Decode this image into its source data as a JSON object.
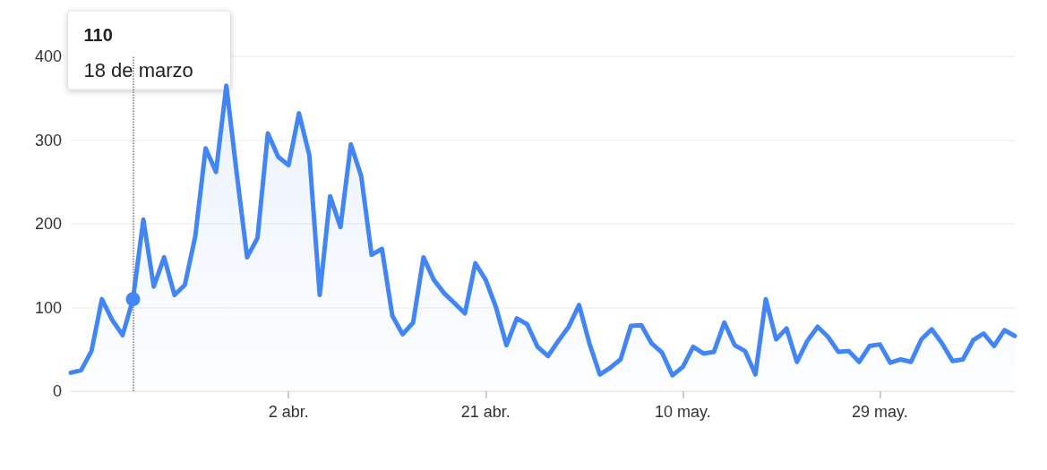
{
  "chart_data": {
    "type": "area",
    "x": [
      "--03-12",
      "--03-13",
      "--03-14",
      "--03-15",
      "--03-16",
      "--03-17",
      "--03-18",
      "--03-19",
      "--03-20",
      "--03-21",
      "--03-22",
      "--03-23",
      "--03-24",
      "--03-25",
      "--03-26",
      "--03-27",
      "--03-28",
      "--03-29",
      "--03-30",
      "--03-31",
      "--04-01",
      "--04-02",
      "--04-03",
      "--04-04",
      "--04-05",
      "--04-06",
      "--04-07",
      "--04-08",
      "--04-09",
      "--04-10",
      "--04-11",
      "--04-12",
      "--04-13",
      "--04-14",
      "--04-15",
      "--04-16",
      "--04-17",
      "--04-18",
      "--04-19",
      "--04-20",
      "--04-21",
      "--04-22",
      "--04-23",
      "--04-24",
      "--04-25",
      "--04-26",
      "--04-27",
      "--04-28",
      "--04-29",
      "--04-30",
      "--05-01",
      "--05-02",
      "--05-03",
      "--05-04",
      "--05-05",
      "--05-06",
      "--05-07",
      "--05-08",
      "--05-09",
      "--05-10",
      "--05-11",
      "--05-12",
      "--05-13",
      "--05-14",
      "--05-15",
      "--05-16",
      "--05-17",
      "--05-18",
      "--05-19",
      "--05-20",
      "--05-21",
      "--05-22",
      "--05-23",
      "--05-24",
      "--05-25",
      "--05-26",
      "--05-27",
      "--05-28",
      "--05-29",
      "--05-30",
      "--05-31",
      "--06-01",
      "--06-02",
      "--06-03",
      "--06-04",
      "--06-05",
      "--06-06",
      "--06-07",
      "--06-08",
      "--06-09",
      "--06-10",
      "--06-11"
    ],
    "series": [
      {
        "color": "#4285f4",
        "values": [
          22,
          25,
          48,
          110,
          85,
          67,
          110,
          205,
          125,
          160,
          115,
          127,
          185,
          290,
          262,
          365,
          260,
          160,
          183,
          308,
          280,
          270,
          332,
          282,
          115,
          233,
          196,
          295,
          257,
          163,
          170,
          90,
          68,
          82,
          160,
          133,
          117,
          105,
          93,
          153,
          133,
          100,
          55,
          87,
          80,
          53,
          42,
          60,
          77,
          103,
          57,
          20,
          28,
          38,
          78,
          79,
          57,
          46,
          19,
          29,
          53,
          45,
          47,
          82,
          55,
          48,
          20,
          110,
          62,
          75,
          35,
          60,
          77,
          65,
          47,
          48,
          35,
          54,
          56,
          34,
          38,
          35,
          62,
          74,
          57,
          36,
          38,
          61,
          69,
          54,
          73,
          66
        ]
      }
    ],
    "xlim": [
      "--03-12",
      "--06-11"
    ],
    "xticks": [
      {
        "value": "--04-02",
        "label": "2 abr."
      },
      {
        "value": "--04-21",
        "label": "21 abr."
      },
      {
        "value": "--05-10",
        "label": "10 may."
      },
      {
        "value": "--05-29",
        "label": "29 may."
      }
    ],
    "ylim": [
      0,
      400
    ],
    "yticks": [
      0,
      100,
      200,
      300,
      400
    ],
    "grid": "y",
    "marker": "none",
    "line_style": "solid",
    "ref_lines": [
      {
        "axis": "x",
        "value": "--03-18",
        "line_style": "dotted",
        "color": "#757575"
      }
    ],
    "annotations": [
      "110",
      "18 de marzo"
    ]
  }
}
